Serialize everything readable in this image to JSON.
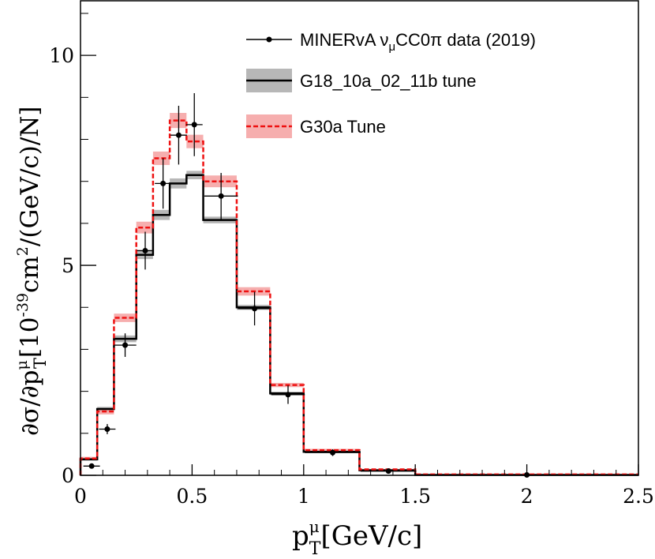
{
  "chart_data": {
    "type": "line",
    "xlim": [
      0,
      2.5
    ],
    "ylim": [
      0,
      11.3
    ],
    "x_ticks": [
      0,
      0.5,
      1,
      1.5,
      2,
      2.5
    ],
    "x_tick_labels": [
      "0",
      "0.5",
      "1",
      "1.5",
      "2",
      "2.5"
    ],
    "y_ticks": [
      0,
      5,
      10
    ],
    "y_tick_labels": [
      "0",
      "5",
      "10"
    ],
    "xlabel": {
      "base": "p",
      "sup": "μ",
      "sub": "T",
      "rest": "[GeV/c]"
    },
    "ylabel": {
      "part1": "∂σ/∂p",
      "sup": "μ",
      "sub": "T",
      "part2": "[10",
      "exp": "-39",
      "part3": "cm",
      "exp2": "2",
      "part4": "/(GeV/c)/N]"
    },
    "grid": false,
    "legend_position": "top-right",
    "legend": [
      {
        "series": "data",
        "parts": [
          {
            "t": "MINERvA ν"
          },
          {
            "t": "μ",
            "sub": true
          },
          {
            "t": "CC0π data (2019)"
          }
        ]
      },
      {
        "series": "g18",
        "parts": [
          {
            "t": "G18_10a_02_11b tune"
          }
        ]
      },
      {
        "series": "g30",
        "parts": [
          {
            "t": "G30a Tune"
          }
        ]
      }
    ],
    "bin_edges": [
      0,
      0.075,
      0.15,
      0.25,
      0.325,
      0.4,
      0.475,
      0.55,
      0.7,
      0.85,
      1.0,
      1.25,
      1.5,
      2.5
    ],
    "series": [
      {
        "id": "g18",
        "style": "solid",
        "color": "#000000",
        "band_color": "#aaaaaa",
        "values": [
          0.38,
          1.58,
          3.25,
          5.25,
          6.2,
          6.95,
          7.15,
          6.08,
          4.0,
          1.95,
          0.56,
          0.12,
          0.01
        ],
        "band_halfwidth": [
          0.03,
          0.05,
          0.08,
          0.1,
          0.12,
          0.12,
          0.1,
          0.08,
          0.06,
          0.04,
          0.02,
          0.01,
          0.0
        ]
      },
      {
        "id": "g30",
        "style": "dashed",
        "color": "#ee1111",
        "band_color": "#f5a0a0",
        "values": [
          0.4,
          1.52,
          3.75,
          5.9,
          7.55,
          8.45,
          7.95,
          7.0,
          4.38,
          2.15,
          0.6,
          0.14,
          0.02
        ],
        "band_halfwidth": [
          0.04,
          0.07,
          0.1,
          0.14,
          0.16,
          0.18,
          0.16,
          0.14,
          0.1,
          0.05,
          0.03,
          0.01,
          0.0
        ]
      },
      {
        "id": "data",
        "style": "points",
        "color": "#000000",
        "points": [
          {
            "x": 0.05,
            "y": 0.22,
            "xerr": 0.037,
            "yerr": 0.06
          },
          {
            "x": 0.12,
            "y": 1.1,
            "xerr": 0.037,
            "yerr": 0.12
          },
          {
            "x": 0.2,
            "y": 3.1,
            "xerr": 0.05,
            "yerr": 0.28
          },
          {
            "x": 0.29,
            "y": 5.35,
            "xerr": 0.037,
            "yerr": 0.45
          },
          {
            "x": 0.37,
            "y": 6.95,
            "xerr": 0.037,
            "yerr": 0.6
          },
          {
            "x": 0.44,
            "y": 8.1,
            "xerr": 0.037,
            "yerr": 0.7
          },
          {
            "x": 0.51,
            "y": 8.35,
            "xerr": 0.037,
            "yerr": 0.75
          },
          {
            "x": 0.63,
            "y": 6.65,
            "xerr": 0.075,
            "yerr": 0.55
          },
          {
            "x": 0.78,
            "y": 3.97,
            "xerr": 0.075,
            "yerr": 0.4
          },
          {
            "x": 0.93,
            "y": 1.92,
            "xerr": 0.075,
            "yerr": 0.22
          },
          {
            "x": 1.13,
            "y": 0.54,
            "xerr": 0.125,
            "yerr": 0.08
          },
          {
            "x": 1.38,
            "y": 0.1,
            "xerr": 0.125,
            "yerr": 0.03
          },
          {
            "x": 2.0,
            "y": 0.01,
            "xerr": 0.5,
            "yerr": 0.01
          }
        ]
      }
    ]
  }
}
